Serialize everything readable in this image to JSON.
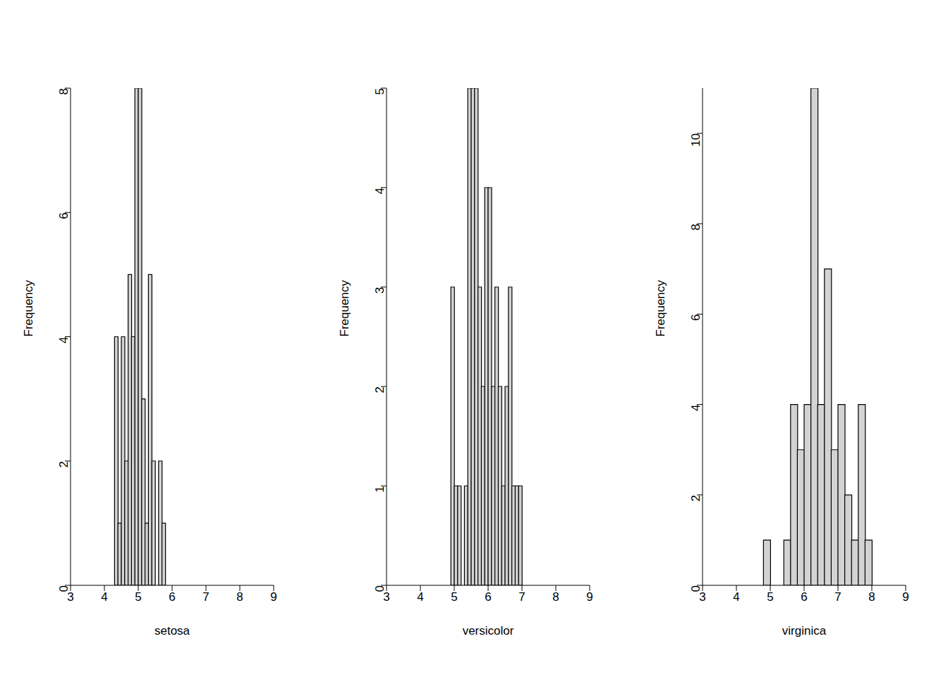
{
  "chart_data": [
    {
      "type": "histogram",
      "x_label": "setosa",
      "y_label": "Frequency",
      "color": "#d3d3d3",
      "bins": [
        4.3,
        4.4,
        4.5,
        4.6,
        4.7,
        4.8,
        4.9,
        5.0,
        5.1,
        5.2,
        5.3,
        5.4,
        5.5,
        5.6,
        5.7,
        5.8
      ],
      "values": [
        4,
        1,
        4,
        2,
        5,
        4,
        8,
        8,
        3,
        1,
        5,
        2,
        0,
        2,
        1
      ],
      "xlim": [
        3,
        9
      ],
      "xticks": [
        3,
        4,
        5,
        6,
        7,
        8,
        9
      ],
      "ylim": [
        0,
        8
      ],
      "yticks": [
        0,
        2,
        4,
        6,
        8
      ]
    },
    {
      "type": "histogram",
      "x_label": "versicolor",
      "y_label": "Frequency",
      "color": "#d3d3d3",
      "bins": [
        4.9,
        5.0,
        5.1,
        5.2,
        5.3,
        5.4,
        5.5,
        5.6,
        5.7,
        5.8,
        5.9,
        6.0,
        6.1,
        6.2,
        6.3,
        6.4,
        6.5,
        6.6,
        6.7,
        6.8,
        6.9,
        7.0
      ],
      "values": [
        3,
        1,
        1,
        0,
        1,
        5,
        5,
        5,
        3,
        2,
        4,
        4,
        2,
        3,
        2,
        1,
        2,
        3,
        1,
        1,
        1
      ],
      "xlim": [
        3,
        9
      ],
      "xticks": [
        3,
        4,
        5,
        6,
        7,
        8,
        9
      ],
      "ylim": [
        0,
        5
      ],
      "yticks": [
        0,
        1,
        2,
        3,
        4,
        5
      ]
    },
    {
      "type": "histogram",
      "x_label": "virginica",
      "y_label": "Frequency",
      "color": "#d3d3d3",
      "bins": [
        4.8,
        5.0,
        5.2,
        5.4,
        5.6,
        5.8,
        6.0,
        6.2,
        6.4,
        6.6,
        6.8,
        7.0,
        7.2,
        7.4,
        7.6,
        7.8,
        8.0
      ],
      "values": [
        1,
        0,
        0,
        1,
        4,
        3,
        4,
        11,
        4,
        7,
        3,
        4,
        2,
        1,
        4,
        1
      ],
      "xlim": [
        3,
        9
      ],
      "xticks": [
        3,
        4,
        5,
        6,
        7,
        8,
        9
      ],
      "ylim": [
        0,
        11
      ],
      "yticks": [
        0,
        2,
        4,
        6,
        8,
        10
      ]
    }
  ]
}
